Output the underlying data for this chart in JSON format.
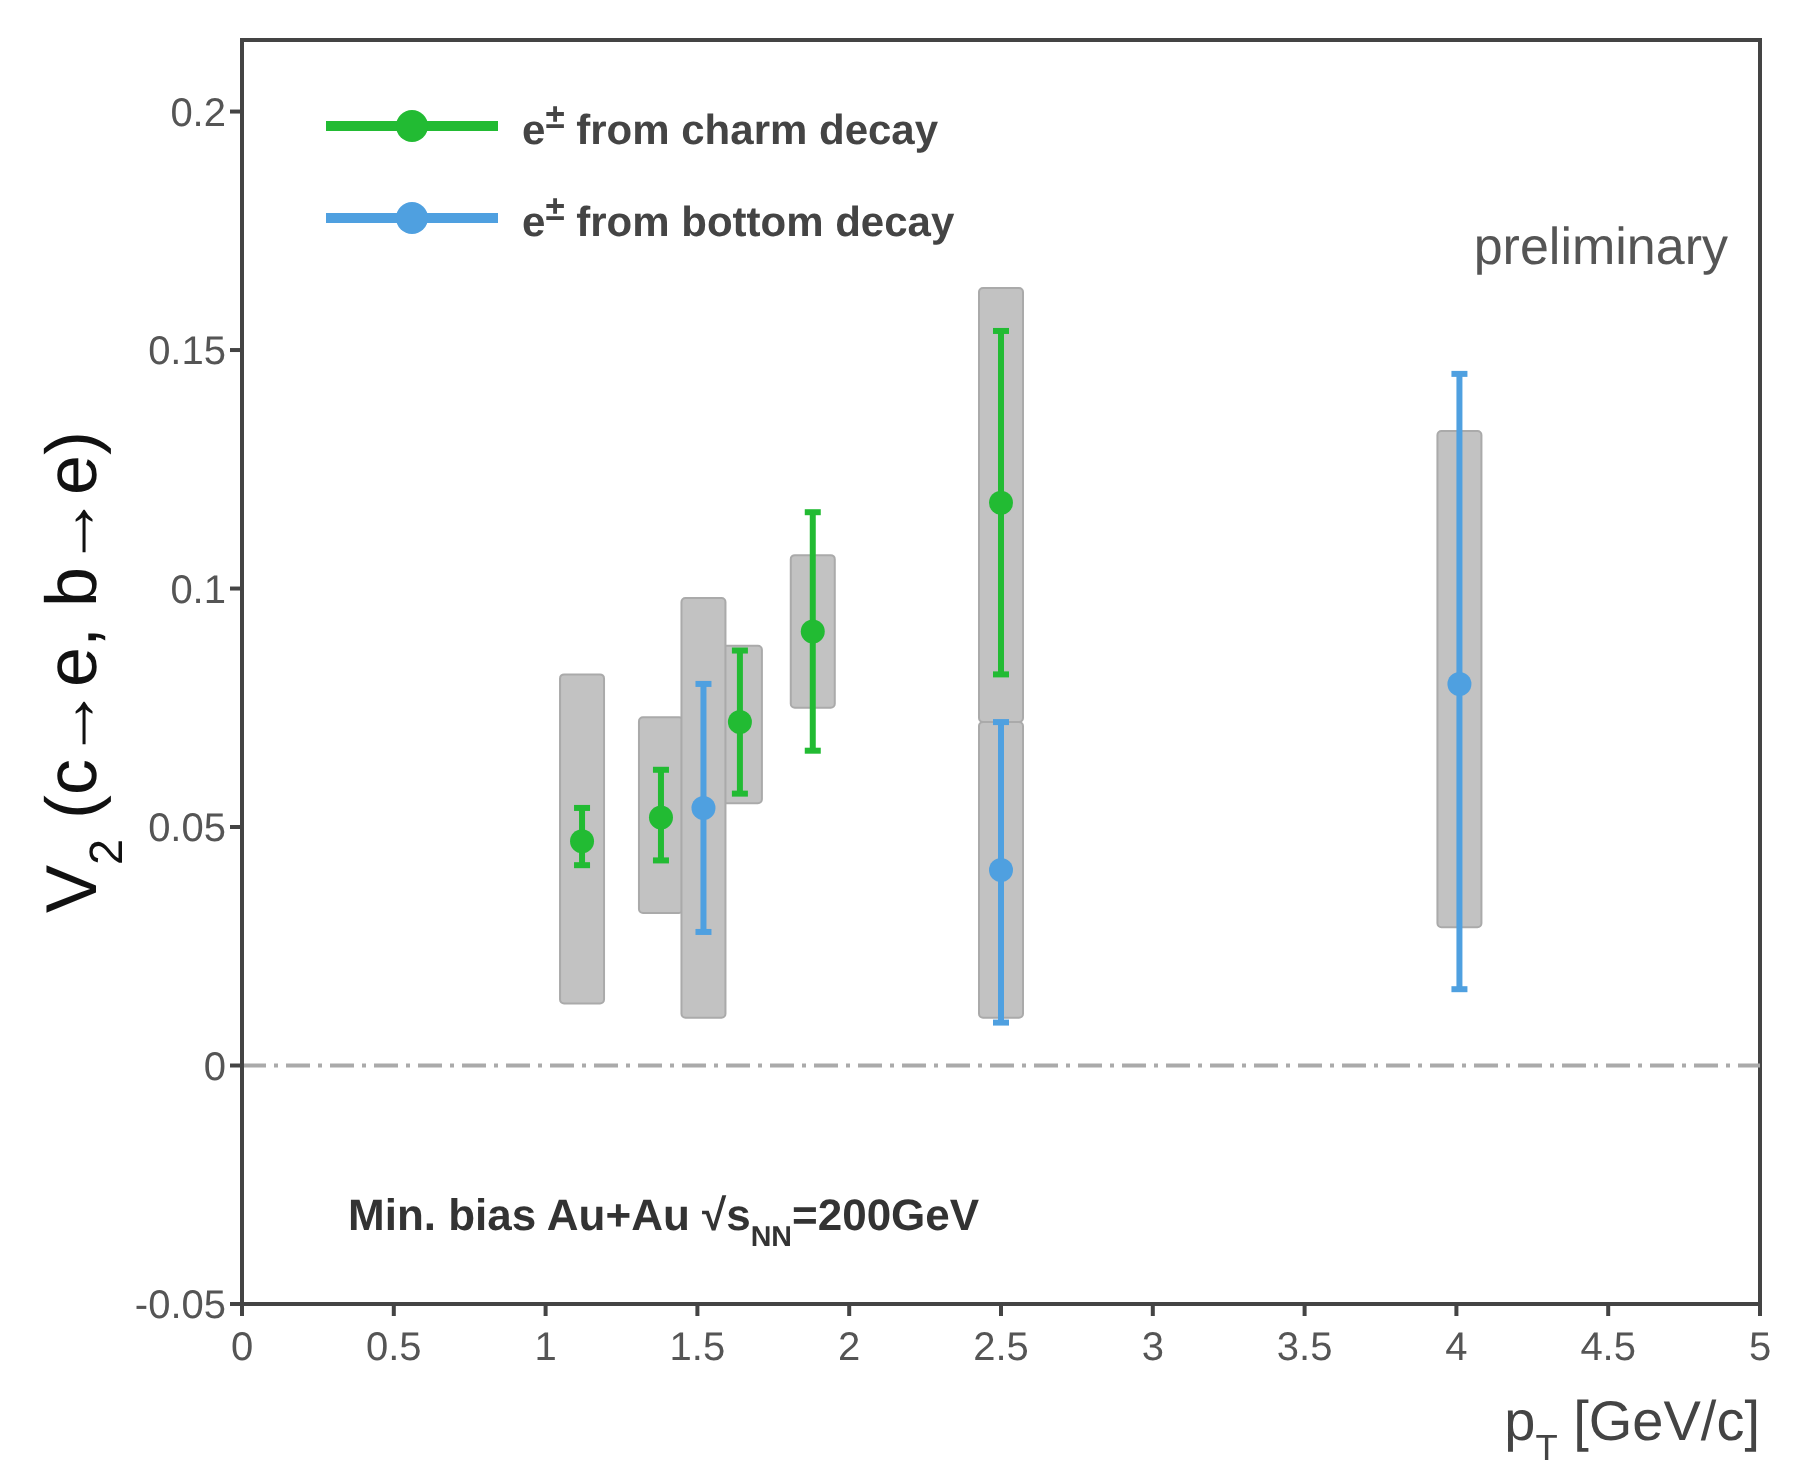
{
  "chart_data": {
    "type": "scatter",
    "xlabel": "p$_{T}$ [GeV/c]",
    "ylabel": "V$_{2}$ (c→e, b→e)",
    "xlim": [
      0,
      5
    ],
    "xticks": [
      0,
      0.5,
      1,
      1.5,
      2,
      2.5,
      3,
      3.5,
      4,
      4.5,
      5
    ],
    "ylim": [
      -0.05,
      0.215
    ],
    "yticks": [
      -0.05,
      0,
      0.05,
      0.1,
      0.15,
      0.2
    ],
    "marker": "circle",
    "legend": "top left",
    "ref_lines": [
      {
        "axis": "y",
        "value": 0,
        "color": "#aaaaaa",
        "line_style": "dashed"
      }
    ],
    "annotations": [
      "Min. bias Au+Au √s$_{NN}$=200GeV",
      "preliminary"
    ],
    "series": [
      {
        "type": "bar",
        "color": "#c2c2c2",
        "x": [
          1.12,
          1.38,
          1.64,
          1.88,
          2.5
        ],
        "base": [
          0.013,
          0.032,
          0.055,
          0.075,
          0.072
        ],
        "values": [
          0.069,
          0.041,
          0.033,
          0.032,
          0.091
        ]
      },
      {
        "type": "bar",
        "color": "#c2c2c2",
        "x": [
          1.52,
          2.5,
          4.01
        ],
        "base": [
          0.01,
          0.01,
          0.029
        ],
        "values": [
          0.088,
          0.062,
          0.104
        ]
      },
      {
        "name": "e$^{±}$ from charm decay",
        "color": "#22bb33",
        "x": [
          1.12,
          1.38,
          1.64,
          1.88,
          2.5
        ],
        "values": [
          0.047,
          0.052,
          0.072,
          0.091,
          0.118
        ],
        "errors": [
          [
            0.042,
            0.054
          ],
          [
            0.043,
            0.062
          ],
          [
            0.057,
            0.087
          ],
          [
            0.066,
            0.116
          ],
          [
            0.082,
            0.154
          ]
        ]
      },
      {
        "name": "e$^{±}$ from bottom decay",
        "color": "#4fa0e0",
        "x": [
          1.52,
          2.5,
          4.01
        ],
        "values": [
          0.054,
          0.041,
          0.08
        ],
        "errors": [
          [
            0.028,
            0.08
          ],
          [
            0.009,
            0.072
          ],
          [
            0.016,
            0.145
          ]
        ]
      }
    ]
  }
}
